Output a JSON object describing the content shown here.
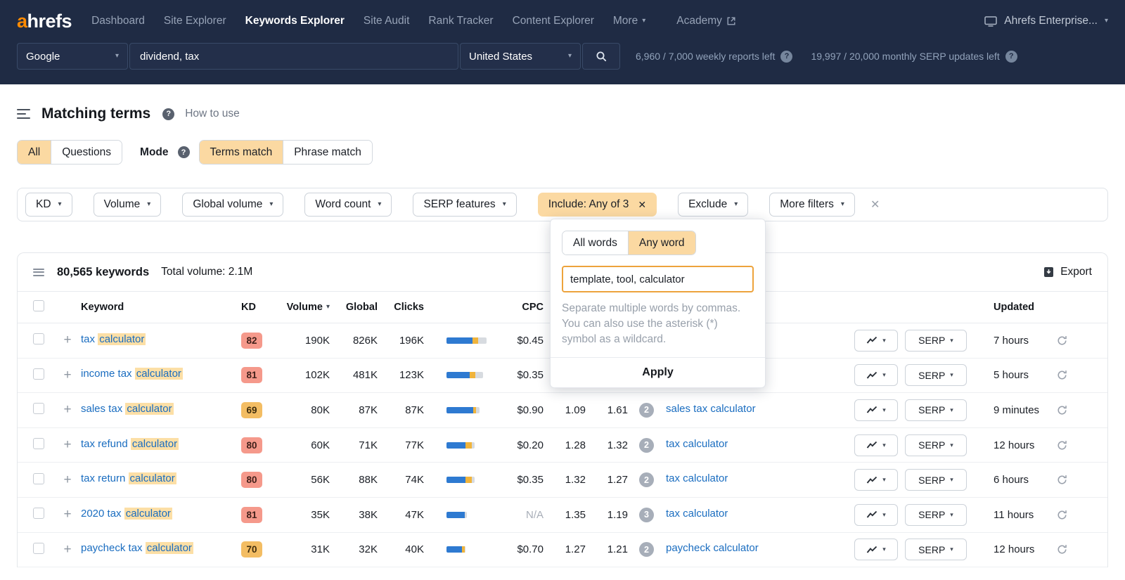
{
  "icons": {
    "caret_down": "▾",
    "close": "✕",
    "plus": "+",
    "question": "?"
  },
  "navbar": {
    "logo_a": "a",
    "logo_rest": "hrefs",
    "items": [
      {
        "label": "Dashboard",
        "active": false,
        "caret": false
      },
      {
        "label": "Site Explorer",
        "active": false,
        "caret": false
      },
      {
        "label": "Keywords Explorer",
        "active": true,
        "caret": false
      },
      {
        "label": "Site Audit",
        "active": false,
        "caret": false
      },
      {
        "label": "Rank Tracker",
        "active": false,
        "caret": false
      },
      {
        "label": "Content Explorer",
        "active": false,
        "caret": false
      },
      {
        "label": "More",
        "active": false,
        "caret": true
      }
    ],
    "academy": "Academy",
    "account": "Ahrefs Enterprise..."
  },
  "searchbar": {
    "engine": "Google",
    "query": "dividend, tax",
    "country": "United States",
    "weekly_reports": "6,960 / 7,000 weekly reports left",
    "serp_updates": "19,997 / 20,000 monthly SERP updates left"
  },
  "page_header": {
    "title": "Matching terms",
    "how_to_use": "How to use"
  },
  "view_tabs": [
    {
      "label": "All",
      "active": true
    },
    {
      "label": "Questions",
      "active": false
    }
  ],
  "mode": {
    "label": "Mode",
    "tabs": [
      {
        "label": "Terms match",
        "active": true
      },
      {
        "label": "Phrase match",
        "active": false
      }
    ]
  },
  "filters": [
    {
      "label": "KD",
      "type": "dropdown"
    },
    {
      "label": "Volume",
      "type": "dropdown"
    },
    {
      "label": "Global volume",
      "type": "dropdown"
    },
    {
      "label": "Word count",
      "type": "dropdown"
    },
    {
      "label": "SERP features",
      "type": "dropdown"
    },
    {
      "label": "Include: Any of 3",
      "type": "active-close"
    },
    {
      "label": "Exclude",
      "type": "dropdown"
    },
    {
      "label": "More filters",
      "type": "dropdown"
    }
  ],
  "include_popup": {
    "tabs": [
      {
        "label": "All words",
        "active": false
      },
      {
        "label": "Any word",
        "active": true
      }
    ],
    "input_value": "template, tool, calculator",
    "help_text": "Separate multiple words by commas. You can also use the asterisk (*) symbol as a wildcard.",
    "apply_label": "Apply"
  },
  "toolbar": {
    "keywords_count": "80,565 keywords",
    "total_volume": "Total volume: 2.1M",
    "export_label": "Export"
  },
  "table": {
    "serp_label": "SERP",
    "headers": {
      "keyword": "Keyword",
      "kd": "KD",
      "volume": "Volume",
      "global": "Global",
      "clicks": "Clicks",
      "cpc": "CPC",
      "updated": "Updated"
    },
    "rows": [
      {
        "keyword_prefix": "tax ",
        "keyword_highlight": "calculator",
        "kd": "82",
        "kd_level": "hard",
        "volume": "190K",
        "global": "826K",
        "clicks": "196K",
        "bar": [
          37,
          8,
          12
        ],
        "cpc": "$0.45",
        "cps1": "",
        "cps2": "",
        "parent_count": "",
        "parent": "",
        "updated": "7 hours"
      },
      {
        "keyword_prefix": "income tax ",
        "keyword_highlight": "calculator",
        "kd": "81",
        "kd_level": "hard",
        "volume": "102K",
        "global": "481K",
        "clicks": "123K",
        "bar": [
          33,
          8,
          11
        ],
        "cpc": "$0.35",
        "cps1": "",
        "cps2": "",
        "parent_count": "",
        "parent": "",
        "updated": "5 hours"
      },
      {
        "keyword_prefix": "sales tax ",
        "keyword_highlight": "calculator",
        "kd": "69",
        "kd_level": "medium",
        "volume": "80K",
        "global": "87K",
        "clicks": "87K",
        "bar": [
          38,
          4,
          5
        ],
        "cpc": "$0.90",
        "cps1": "1.09",
        "cps2": "1.61",
        "parent_count": "2",
        "parent": "sales tax calculator",
        "updated": "9 minutes"
      },
      {
        "keyword_prefix": "tax refund ",
        "keyword_highlight": "calculator",
        "kd": "80",
        "kd_level": "hard",
        "volume": "60K",
        "global": "71K",
        "clicks": "77K",
        "bar": [
          27,
          9,
          4
        ],
        "cpc": "$0.20",
        "cps1": "1.28",
        "cps2": "1.32",
        "parent_count": "2",
        "parent": "tax calculator",
        "updated": "12 hours"
      },
      {
        "keyword_prefix": "tax return ",
        "keyword_highlight": "calculator",
        "kd": "80",
        "kd_level": "hard",
        "volume": "56K",
        "global": "88K",
        "clicks": "74K",
        "bar": [
          27,
          9,
          4
        ],
        "cpc": "$0.35",
        "cps1": "1.32",
        "cps2": "1.27",
        "parent_count": "2",
        "parent": "tax calculator",
        "updated": "6 hours"
      },
      {
        "keyword_prefix": "2020 tax ",
        "keyword_highlight": "calculator",
        "kd": "81",
        "kd_level": "hard",
        "volume": "35K",
        "global": "38K",
        "clicks": "47K",
        "bar": [
          26,
          0,
          3
        ],
        "cpc": "N/A",
        "cps1": "1.35",
        "cps2": "1.19",
        "parent_count": "3",
        "parent": "tax calculator",
        "updated": "11 hours"
      },
      {
        "keyword_prefix": "paycheck tax ",
        "keyword_highlight": "calculator",
        "kd": "70",
        "kd_level": "medium",
        "volume": "31K",
        "global": "32K",
        "clicks": "40K",
        "bar": [
          22,
          4,
          1
        ],
        "cpc": "$0.70",
        "cps1": "1.27",
        "cps2": "1.21",
        "parent_count": "2",
        "parent": "paycheck calculator",
        "updated": "12 hours"
      }
    ]
  }
}
